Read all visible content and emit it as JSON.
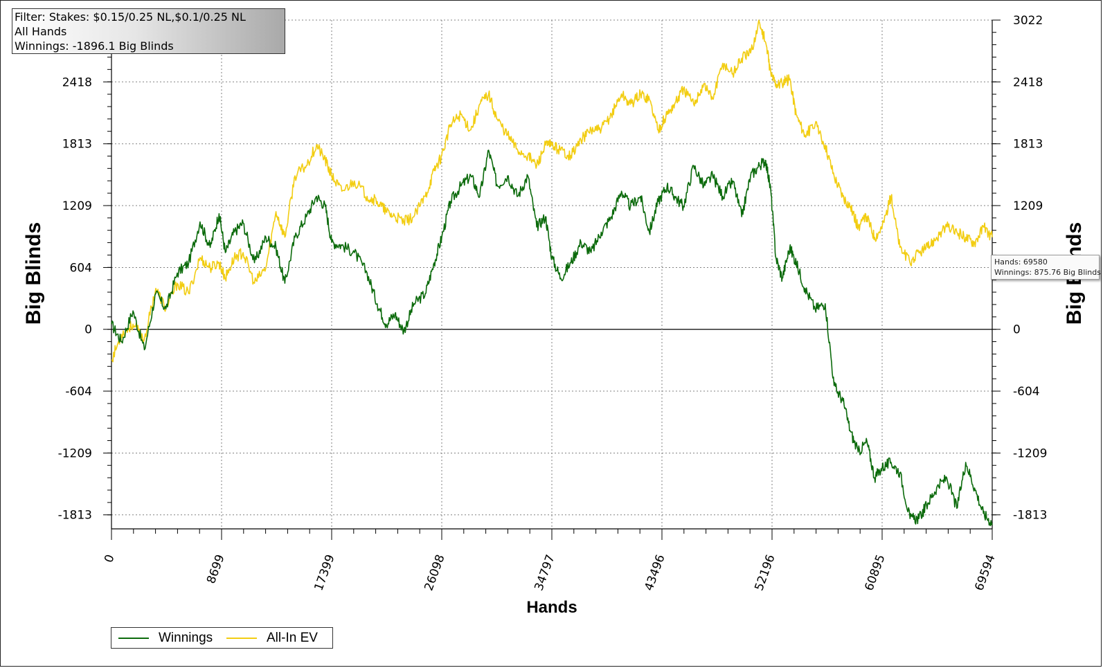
{
  "filter": {
    "line1": "Filter: Stakes: $0.15/0.25 NL,$0.1/0.25 NL",
    "line2": "All Hands",
    "line3": "Winnings: -1896.1 Big Blinds"
  },
  "tooltip": {
    "hands": "Hands: 69580",
    "winnings": "Winnings: 875.76 Big Blinds"
  },
  "legend": {
    "winnings": "Winnings",
    "allin_ev": "All-In EV"
  },
  "colors": {
    "winnings": "#0b6a0b",
    "allin_ev": "#f2cd12",
    "grid": "#808080",
    "zero_line": "#000000"
  },
  "chart_data": {
    "type": "line",
    "xlabel": "Hands",
    "ylabel": "Big Blinds",
    "ylabel_right": "Big Blinds",
    "xlim": [
      0,
      69594
    ],
    "ylim": [
      -1950,
      3022
    ],
    "x_ticks": [
      0,
      8699,
      17399,
      26098,
      34797,
      43496,
      52196,
      60895,
      69594
    ],
    "y_ticks": [
      -1813,
      -1209,
      -604,
      0,
      604,
      1209,
      1813,
      2418
    ],
    "y_ticks_right": [
      -1813,
      -1209,
      -604,
      0,
      604,
      1209,
      1813,
      2418,
      3022
    ],
    "grid": true,
    "legend_position": "bottom-left",
    "series": [
      {
        "name": "Winnings",
        "x": [
          0,
          800,
          1700,
          2600,
          3500,
          4300,
          5200,
          6100,
          7000,
          7800,
          8500,
          9000,
          9700,
          10400,
          11300,
          12200,
          13000,
          13700,
          14500,
          15400,
          16200,
          16900,
          17400,
          18200,
          19200,
          20200,
          21000,
          21700,
          22400,
          23100,
          23900,
          24800,
          25500,
          26100,
          26800,
          27600,
          28400,
          29100,
          29800,
          30500,
          31300,
          32100,
          32900,
          33600,
          34300,
          34800,
          35500,
          36300,
          37100,
          37900,
          38700,
          39500,
          40300,
          41000,
          41800,
          42500,
          43200,
          43900,
          44500,
          45200,
          46000,
          46800,
          47500,
          48300,
          49100,
          49800,
          50500,
          51200,
          51700,
          52100,
          52500,
          53000,
          53600,
          54100,
          54800,
          55600,
          56400,
          57100,
          57800,
          58400,
          59000,
          59700,
          60300,
          60900,
          61600,
          62300,
          63100,
          63800,
          64500,
          65200,
          66000,
          66800,
          67500,
          68200,
          68900,
          69594
        ],
        "y": [
          50,
          -120,
          180,
          -200,
          350,
          200,
          550,
          650,
          1050,
          800,
          1130,
          750,
          950,
          1040,
          650,
          900,
          800,
          450,
          900,
          1100,
          1300,
          1200,
          850,
          820,
          750,
          550,
          250,
          50,
          150,
          -20,
          250,
          350,
          650,
          900,
          1250,
          1400,
          1500,
          1300,
          1750,
          1400,
          1500,
          1300,
          1500,
          1000,
          1100,
          700,
          500,
          650,
          850,
          750,
          950,
          1100,
          1350,
          1200,
          1300,
          950,
          1250,
          1400,
          1300,
          1200,
          1600,
          1400,
          1500,
          1300,
          1450,
          1100,
          1500,
          1600,
          1650,
          1350,
          700,
          500,
          800,
          650,
          400,
          200,
          250,
          -550,
          -700,
          -1000,
          -1200,
          -1100,
          -1450,
          -1350,
          -1300,
          -1400,
          -1850,
          -1850,
          -1700,
          -1550,
          -1450,
          -1750,
          -1300,
          -1550,
          -1800,
          -1896
        ]
      },
      {
        "name": "All-In EV",
        "x": [
          0,
          800,
          1700,
          2600,
          3500,
          4300,
          5200,
          6100,
          7000,
          7800,
          8500,
          9000,
          9700,
          10400,
          11300,
          12200,
          13000,
          13700,
          14500,
          15400,
          16200,
          16900,
          17400,
          18200,
          19200,
          20200,
          21000,
          21700,
          22400,
          23100,
          23900,
          24800,
          25500,
          26100,
          26800,
          27600,
          28400,
          29100,
          29800,
          30500,
          31300,
          32100,
          32900,
          33600,
          34300,
          34800,
          35500,
          36300,
          37100,
          37900,
          38700,
          39500,
          40300,
          41000,
          41800,
          42500,
          43200,
          43900,
          44500,
          45200,
          46000,
          46800,
          47500,
          48300,
          49100,
          49800,
          50500,
          51200,
          51700,
          52100,
          52500,
          53000,
          53600,
          54100,
          54800,
          55600,
          56400,
          57100,
          57800,
          58400,
          59000,
          59700,
          60300,
          60900,
          61600,
          62300,
          63100,
          63800,
          64500,
          65200,
          66000,
          66800,
          67500,
          68200,
          68900,
          69594
        ],
        "y": [
          -300,
          -50,
          50,
          -100,
          400,
          200,
          450,
          350,
          700,
          600,
          650,
          500,
          700,
          750,
          450,
          600,
          1150,
          900,
          1500,
          1600,
          1800,
          1650,
          1500,
          1350,
          1450,
          1300,
          1250,
          1150,
          1100,
          1050,
          1100,
          1300,
          1550,
          1700,
          2000,
          2100,
          1950,
          2200,
          2300,
          2050,
          1900,
          1750,
          1700,
          1600,
          1800,
          1800,
          1750,
          1700,
          1850,
          1950,
          1950,
          2100,
          2300,
          2200,
          2300,
          2250,
          1950,
          2100,
          2200,
          2350,
          2200,
          2400,
          2250,
          2600,
          2500,
          2650,
          2700,
          3000,
          2800,
          2500,
          2400,
          2400,
          2450,
          2100,
          1900,
          2000,
          1800,
          1500,
          1300,
          1200,
          1000,
          1100,
          900,
          1000,
          1300,
          800,
          650,
          750,
          800,
          900,
          1000,
          950,
          900,
          850,
          1000,
          900
        ]
      }
    ]
  }
}
